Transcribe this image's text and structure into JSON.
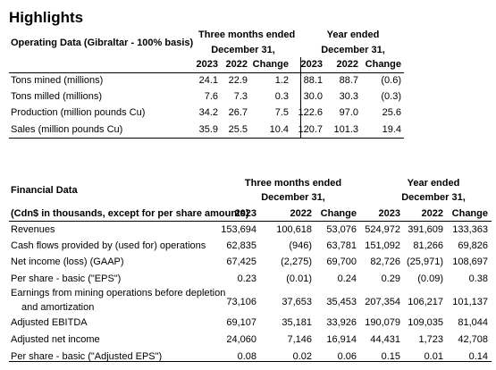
{
  "title": "Highlights",
  "operating": {
    "label": "Operating Data (Gibraltar - 100% basis)",
    "group1": [
      "Three months ended",
      "December 31,"
    ],
    "group2": [
      "Year ended",
      "December 31,"
    ],
    "columns": [
      "2023",
      "2022",
      "Change",
      "2023",
      "2022",
      "Change"
    ],
    "rows": [
      {
        "label": "Tons mined (millions)",
        "values": [
          "24.1",
          "22.9",
          "1.2",
          "88.1",
          "88.7",
          "(0.6)"
        ]
      },
      {
        "label": "Tons milled (millions)",
        "values": [
          "7.6",
          "7.3",
          "0.3",
          "30.0",
          "30.3",
          "(0.3)"
        ]
      },
      {
        "label": "Production (million pounds Cu)",
        "values": [
          "34.2",
          "26.7",
          "7.5",
          "122.6",
          "97.0",
          "25.6"
        ]
      },
      {
        "label": "Sales (million pounds Cu)",
        "values": [
          "35.9",
          "25.5",
          "10.4",
          "120.7",
          "101.3",
          "19.4"
        ]
      }
    ]
  },
  "financial": {
    "label": "Financial Data",
    "sublabel": "(Cdn$ in thousands, except for per share amounts)",
    "group1": [
      "Three months ended",
      "December 31,"
    ],
    "group2": [
      "Year ended",
      "December 31,"
    ],
    "columns": [
      "2023",
      "2022",
      "Change",
      "2023",
      "2022",
      "Change"
    ],
    "rows": [
      {
        "label": "Revenues",
        "values": [
          "153,694",
          "100,618",
          "53,076",
          "524,972",
          "391,609",
          "133,363"
        ]
      },
      {
        "label": "Cash flows provided by (used for) operations",
        "values": [
          "62,835",
          "(946)",
          "63,781",
          "151,092",
          "81,266",
          "69,826"
        ]
      },
      {
        "label": "Net income (loss) (GAAP)",
        "values": [
          "67,425",
          "(2,275)",
          "69,700",
          "82,726",
          "(25,971)",
          "108,697"
        ]
      },
      {
        "label": "Per share - basic (\"EPS\")",
        "values": [
          "0.23",
          "(0.01)",
          "0.24",
          "0.29",
          "(0.09)",
          "0.38"
        ]
      },
      {
        "label": "Earnings from mining operations before depletion",
        "label2": "and amortization",
        "values": [
          "73,106",
          "37,653",
          "35,453",
          "207,354",
          "106,217",
          "101,137"
        ]
      },
      {
        "label": "Adjusted EBITDA",
        "values": [
          "69,107",
          "35,181",
          "33,926",
          "190,079",
          "109,035",
          "81,044"
        ]
      },
      {
        "label": "Adjusted net income",
        "values": [
          "24,060",
          "7,146",
          "16,914",
          "44,431",
          "1,723",
          "42,708"
        ]
      },
      {
        "label": "Per share - basic (\"Adjusted EPS\")",
        "values": [
          "0.08",
          "0.02",
          "0.06",
          "0.15",
          "0.01",
          "0.14"
        ]
      }
    ]
  }
}
